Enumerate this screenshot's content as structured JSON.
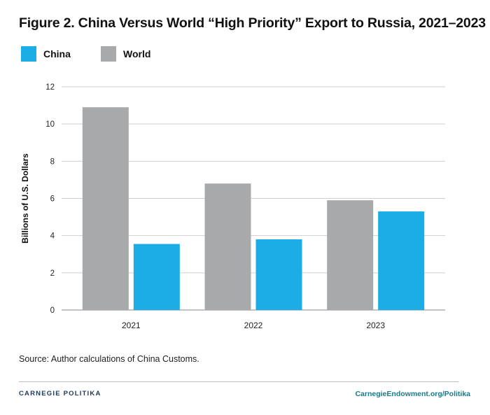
{
  "chart_data": {
    "type": "bar",
    "title": "Figure 2. China Versus World “High Priority” Export to Russia, 2021–2023",
    "xlabel": "",
    "ylabel": "Billions of U.S. Dollars",
    "categories": [
      "2021",
      "2022",
      "2023"
    ],
    "series": [
      {
        "name": "World",
        "color": "#a7a9ab",
        "values": [
          10.9,
          6.8,
          5.9
        ]
      },
      {
        "name": "China",
        "color": "#1baee6",
        "values": [
          3.55,
          3.8,
          5.3
        ]
      }
    ],
    "ylim": [
      0,
      12
    ],
    "yticks": [
      0,
      2,
      4,
      6,
      8,
      10,
      12
    ],
    "grid": true,
    "legend_position": "top-left"
  },
  "legend": [
    {
      "label": "China",
      "color": "#1baee6"
    },
    {
      "label": "World",
      "color": "#a7a9ab"
    }
  ],
  "source": "Source: Author calculations of China Customs.",
  "footer": {
    "left": "CARNEGIE POLITIKA",
    "right": "CarnegieEndowment.org/Politika"
  }
}
